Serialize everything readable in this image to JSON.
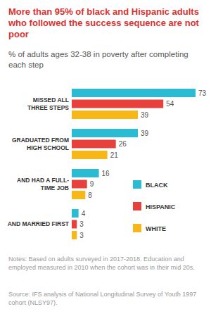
{
  "chart_data": {
    "type": "bar",
    "orientation": "horizontal",
    "title": "More than 95% of black and Hispanic adults who followed the success sequence are not poor",
    "subtitle": "% of adults ages 32-38 in poverty after completing each step",
    "categories": [
      "MISSED ALL THREE STEPS",
      "GRADUATED FROM HIGH SCHOOL",
      "AND HAD A FULL-TIME JOB",
      "AND MARRIED FIRST"
    ],
    "series": [
      {
        "name": "BLACK",
        "color": "#2bbcd4",
        "values": [
          73,
          39,
          16,
          4
        ]
      },
      {
        "name": "HISPANIC",
        "color": "#e8413c",
        "values": [
          54,
          26,
          9,
          3
        ]
      },
      {
        "name": "WHITE",
        "color": "#f7b718",
        "values": [
          39,
          21,
          8,
          3
        ]
      }
    ],
    "xlim": [
      0,
      73
    ],
    "tick_labels": false,
    "grid": false,
    "data_labels": true,
    "legend": "right",
    "notes": "Notes: Based on adults surveyed in 2017-2018. Education and employed measured in 2010 when the cohort was in their mid 20s.",
    "source": "Source: IFS analysis of National Longitudinal Survey of Youth 1997 cohort (NLSY97)."
  }
}
